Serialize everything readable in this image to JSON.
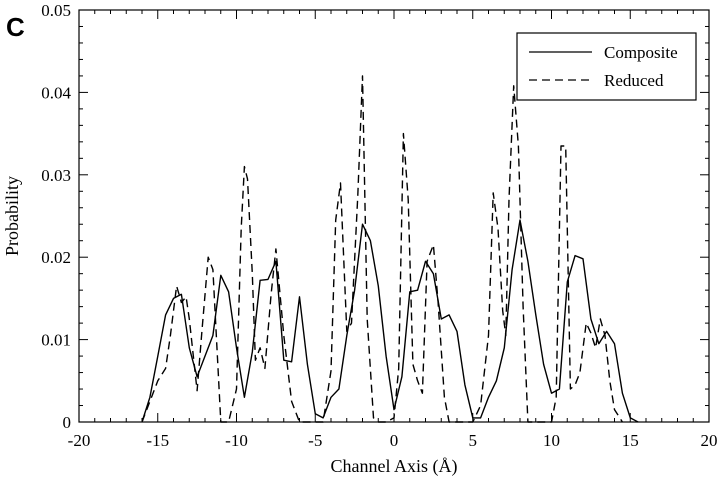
{
  "panel_label": "C",
  "chart_data": {
    "type": "line",
    "xlabel": "Channel Axis (Å)",
    "ylabel": "Probability",
    "xlim": [
      -20,
      20
    ],
    "ylim": [
      0,
      0.05
    ],
    "x_ticks": [
      -20,
      -15,
      -10,
      -5,
      0,
      5,
      10,
      15,
      20
    ],
    "x_tick_labels": [
      "-20",
      "-15",
      "-10",
      "-5",
      "0",
      "5",
      "10",
      "15",
      "20"
    ],
    "y_ticks": [
      0,
      0.01,
      0.02,
      0.03,
      0.04,
      0.05
    ],
    "y_tick_labels": [
      "0",
      "0.01",
      "0.02",
      "0.03",
      "0.04",
      "0.05"
    ],
    "grid": false,
    "legend_position": "top-right",
    "series": [
      {
        "name": "Composite",
        "line_style": "solid",
        "color": "#000000",
        "x": [
          -16,
          -15.5,
          -15,
          -14.5,
          -14,
          -13.5,
          -13,
          -12.5,
          -12,
          -11.5,
          -11,
          -10.5,
          -10,
          -9.5,
          -9,
          -8.5,
          -8,
          -7.5,
          -7,
          -6.5,
          -6,
          -5.5,
          -5,
          -4.5,
          -4,
          -3.5,
          -3,
          -2.5,
          -2,
          -1.5,
          -1,
          -0.5,
          0,
          0.5,
          1,
          1.5,
          2,
          2.5,
          3,
          3.5,
          4,
          4.5,
          5,
          5.5,
          6,
          6.5,
          7,
          7.5,
          8,
          8.5,
          9,
          9.5,
          10,
          10.5,
          11,
          11.5,
          12,
          12.5,
          13,
          13.5,
          14,
          14.5,
          15,
          15.5
        ],
        "y": [
          0,
          0.003,
          0.008,
          0.013,
          0.015,
          0.0155,
          0.009,
          0.0055,
          0.008,
          0.0105,
          0.0178,
          0.0158,
          0.009,
          0.003,
          0.0085,
          0.0172,
          0.0173,
          0.0195,
          0.0075,
          0.0073,
          0.0152,
          0.007,
          0.001,
          0.0005,
          0.003,
          0.004,
          0.0105,
          0.016,
          0.024,
          0.022,
          0.0165,
          0.008,
          0.0015,
          0.0055,
          0.0158,
          0.016,
          0.0195,
          0.018,
          0.0125,
          0.013,
          0.011,
          0.0045,
          0.0005,
          0.0005,
          0.003,
          0.005,
          0.009,
          0.0185,
          0.0245,
          0.0195,
          0.013,
          0.007,
          0.0035,
          0.004,
          0.017,
          0.0202,
          0.0198,
          0.0125,
          0.0095,
          0.011,
          0.0095,
          0.0035,
          0.0005,
          0
        ]
      },
      {
        "name": "Reduced",
        "line_style": "dashed",
        "color": "#000000",
        "x": [
          -16,
          -15.5,
          -15,
          -14.5,
          -14.2,
          -13.8,
          -13.5,
          -13.2,
          -13,
          -12.5,
          -12.2,
          -11.8,
          -11.5,
          -11,
          -10.5,
          -10,
          -9.7,
          -9.5,
          -9.3,
          -9,
          -8.8,
          -8.5,
          -8.2,
          -7.8,
          -7.5,
          -7,
          -6.5,
          -6,
          -5.5,
          -5,
          -4.5,
          -4,
          -3.7,
          -3.4,
          -3,
          -2.7,
          -2.3,
          -2,
          -1.7,
          -1.3,
          -1,
          -0.5,
          0,
          0.3,
          0.6,
          0.9,
          1.2,
          1.5,
          1.8,
          2.1,
          2.5,
          2.8,
          3.2,
          3.5,
          4,
          4.5,
          5,
          5.5,
          6,
          6.3,
          6.6,
          6.9,
          7.1,
          7.3,
          7.6,
          7.9,
          8.2,
          8.5,
          9,
          9.5,
          10,
          10.3,
          10.6,
          10.9,
          11.2,
          11.5,
          11.8,
          12.2,
          12.5,
          12.8,
          13.1,
          13.4,
          13.7,
          14,
          14.5
        ],
        "y": [
          0,
          0.0025,
          0.005,
          0.0065,
          0.0105,
          0.0165,
          0.0145,
          0.0152,
          0.0125,
          0.0038,
          0.011,
          0.02,
          0.0185,
          0.0,
          0.0,
          0.004,
          0.0235,
          0.031,
          0.0295,
          0.018,
          0.0075,
          0.009,
          0.0065,
          0.0155,
          0.021,
          0.0105,
          0.0025,
          0.0,
          0.0,
          0.0,
          0.0,
          0.0062,
          0.0245,
          0.029,
          0.011,
          0.012,
          0.0275,
          0.042,
          0.0125,
          0.0005,
          0.0,
          0.0,
          0.0005,
          0.0065,
          0.035,
          0.027,
          0.007,
          0.005,
          0.0035,
          0.0195,
          0.0215,
          0.0145,
          0.003,
          0.0,
          0.0,
          0.0,
          0.0,
          0.002,
          0.0105,
          0.0278,
          0.0235,
          0.0135,
          0.0105,
          0.027,
          0.0408,
          0.0335,
          0.014,
          0.0,
          0.0,
          0.0,
          0.0,
          0.003,
          0.0335,
          0.0335,
          0.004,
          0.0045,
          0.006,
          0.012,
          0.0108,
          0.009,
          0.0125,
          0.0105,
          0.005,
          0.0015,
          0.0
        ]
      }
    ]
  }
}
